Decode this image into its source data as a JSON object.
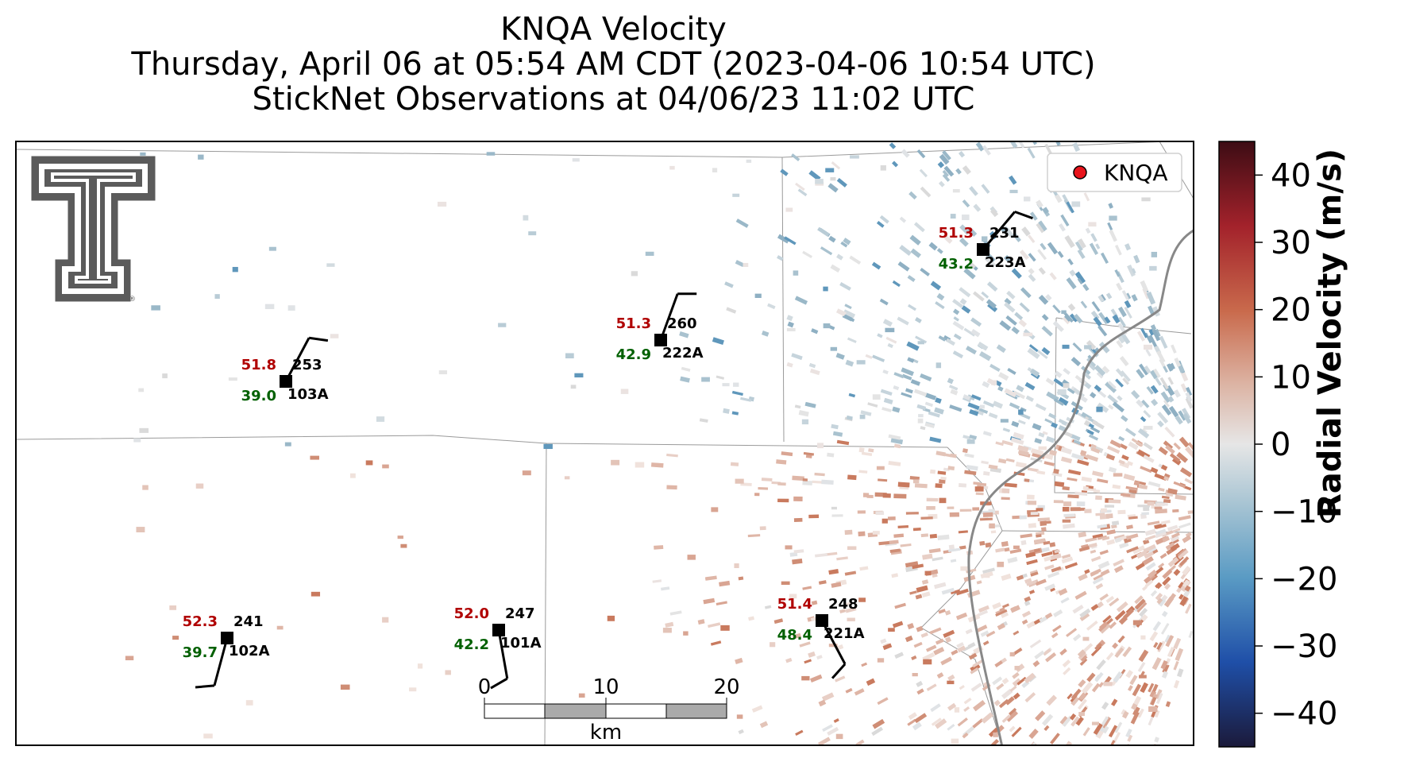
{
  "title": {
    "line1": "KNQA Velocity",
    "line2": "Thursday, April 06 at 05:54 AM CDT (2023-04-06 10:54 UTC)",
    "line3": "StickNet Observations at 04/06/23 11:02 UTC"
  },
  "legend": {
    "label": "KNQA",
    "marker_color": "#e8141c"
  },
  "logo": {
    "name": "texas-tech-double-t-logo",
    "mark": "®"
  },
  "scalebar": {
    "ticks": [
      "0",
      "10",
      "20"
    ],
    "unit": "km"
  },
  "colorbar": {
    "label": "Radial Velocity (m/s)",
    "ticks": [
      "40",
      "30",
      "20",
      "10",
      "0",
      "−10",
      "−20",
      "−30",
      "−40"
    ],
    "range": [
      -45,
      45
    ],
    "colors": [
      "#1b1a3a",
      "#1f4fa8",
      "#5a9bc4",
      "#a7c4d3",
      "#e6e6e6",
      "#dcb3a3",
      "#c96a4c",
      "#a3222b",
      "#3d0c14"
    ]
  },
  "stations": [
    {
      "id": "103A",
      "temp": "51.8",
      "dew": "39.0",
      "dir": "253"
    },
    {
      "id": "222A",
      "temp": "51.3",
      "dew": "42.9",
      "dir": "260"
    },
    {
      "id": "223A",
      "temp": "51.3",
      "dew": "43.2",
      "dir": "231"
    },
    {
      "id": "102A",
      "temp": "52.3",
      "dew": "39.7",
      "dir": "241"
    },
    {
      "id": "101A",
      "temp": "52.0",
      "dew": "42.2",
      "dir": "247"
    },
    {
      "id": "221A",
      "temp": "51.4",
      "dew": "48.4",
      "dir": "248"
    }
  ],
  "colors": {
    "temp": "#b00000",
    "dew": "#006000",
    "station": "#000000"
  }
}
